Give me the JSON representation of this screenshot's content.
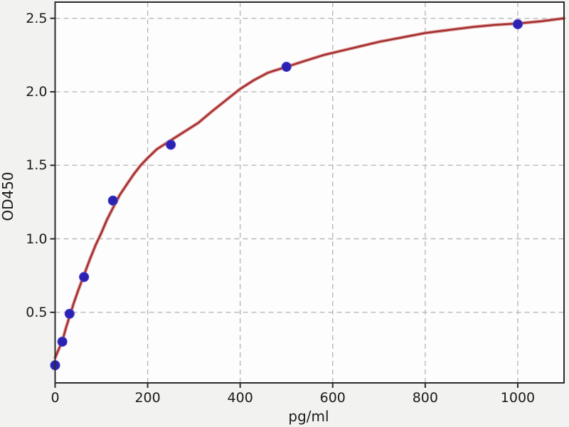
{
  "figure": {
    "background": "#f2f2f0",
    "plot_background": "#fdfdfd",
    "spine_color": "#2b2b2b",
    "grid_color": "#b3b3b3",
    "tick_color": "#2b2b2b",
    "text_color": "#1a1a1a"
  },
  "chart_data": {
    "type": "scatter",
    "title": "",
    "xlabel": "pg/ml",
    "ylabel": "OD450",
    "xlim": [
      0,
      1100
    ],
    "ylim": [
      0.02,
      2.61
    ],
    "grid": "dashed",
    "legend": "none",
    "x_ticks": [
      0,
      200,
      400,
      600,
      800,
      1000
    ],
    "x_tick_labels": [
      "0",
      "200",
      "400",
      "600",
      "800",
      "1000"
    ],
    "y_ticks": [
      0.5,
      1.0,
      1.5,
      2.0,
      2.5
    ],
    "y_tick_labels": [
      "0.5",
      "1.0",
      "1.5",
      "2.0",
      "2.5"
    ],
    "series": [
      {
        "name": "standard-points",
        "type": "scatter",
        "color": "#2b22b4",
        "edge_color": "#5048c8",
        "marker_radius": 6.6,
        "x": [
          0,
          15.6,
          31.25,
          62.5,
          125,
          250,
          500,
          1000
        ],
        "y": [
          0.14,
          0.3,
          0.49,
          0.74,
          1.26,
          1.64,
          2.17,
          2.46
        ]
      },
      {
        "name": "fit-curve",
        "type": "line",
        "color": "#9c2626",
        "halo_color": "#d98d8d",
        "line_width": 2,
        "halo_width": 4.6,
        "x": [
          0,
          8,
          16,
          24,
          31,
          40,
          50,
          62,
          75,
          88,
          100,
          112,
          125,
          140,
          155,
          170,
          185,
          200,
          220,
          250,
          280,
          310,
          340,
          370,
          400,
          430,
          460,
          500,
          540,
          580,
          620,
          660,
          700,
          750,
          800,
          850,
          900,
          950,
          1000,
          1050,
          1100
        ],
        "y": [
          0.19,
          0.25,
          0.31,
          0.4,
          0.47,
          0.56,
          0.65,
          0.75,
          0.86,
          0.96,
          1.04,
          1.13,
          1.21,
          1.3,
          1.37,
          1.44,
          1.5,
          1.55,
          1.61,
          1.67,
          1.73,
          1.79,
          1.87,
          1.945,
          2.02,
          2.08,
          2.13,
          2.17,
          2.21,
          2.25,
          2.28,
          2.31,
          2.34,
          2.37,
          2.4,
          2.42,
          2.44,
          2.455,
          2.465,
          2.48,
          2.5
        ]
      }
    ]
  }
}
